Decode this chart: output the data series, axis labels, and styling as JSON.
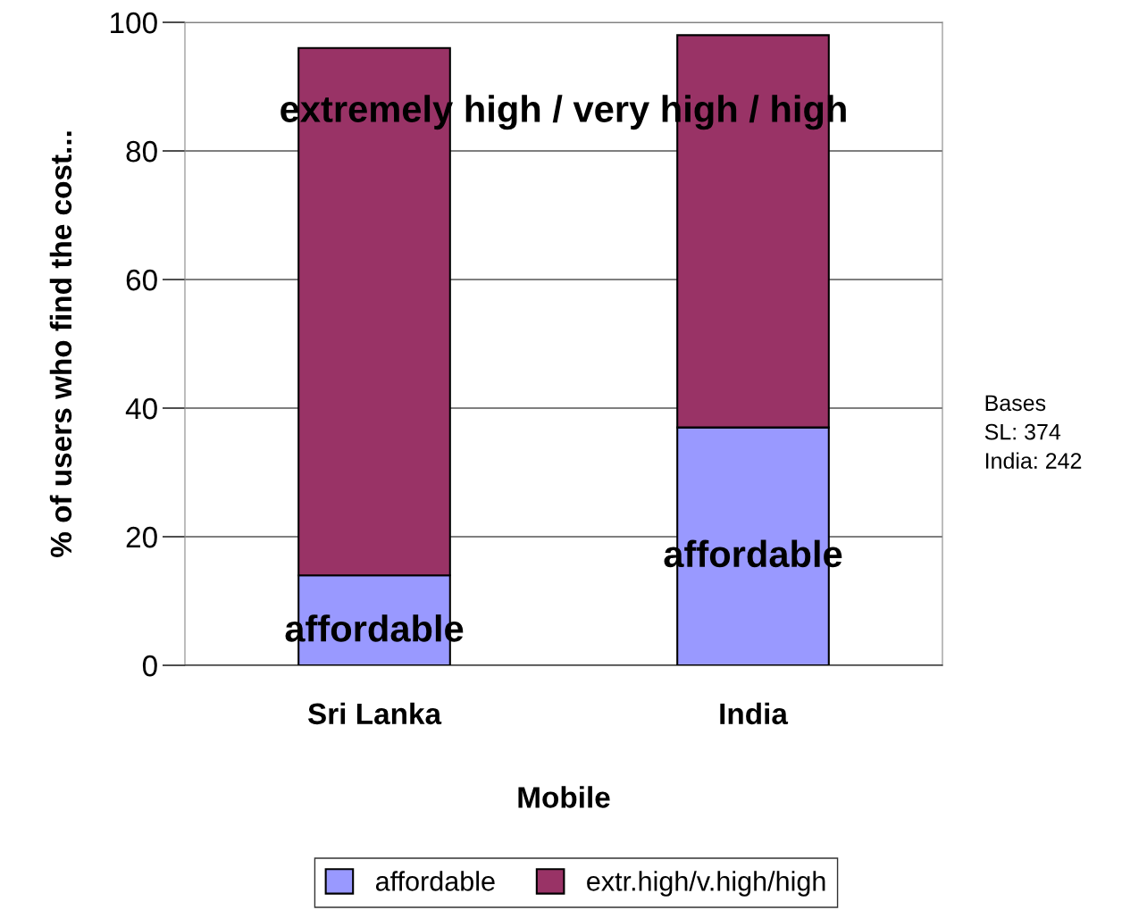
{
  "chart_data": {
    "type": "bar",
    "stacked": true,
    "categories": [
      "Sri Lanka",
      "India"
    ],
    "series": [
      {
        "name": "affordable",
        "color": "#9999ff",
        "values": [
          14,
          37
        ]
      },
      {
        "name": "extr.high/v.high/high",
        "color": "#993366",
        "values": [
          82,
          61
        ]
      }
    ],
    "xlabel": "Mobile",
    "ylabel": "% of users who find the cost...",
    "ylim": [
      0,
      100
    ],
    "yticks": [
      0,
      20,
      40,
      60,
      80,
      100
    ],
    "grid": "y",
    "legend": "bottom",
    "annotations": [
      "extremely high / very high / high",
      "affordable",
      "affordable",
      "Bases\nSL: 374\nIndia: 242"
    ]
  }
}
